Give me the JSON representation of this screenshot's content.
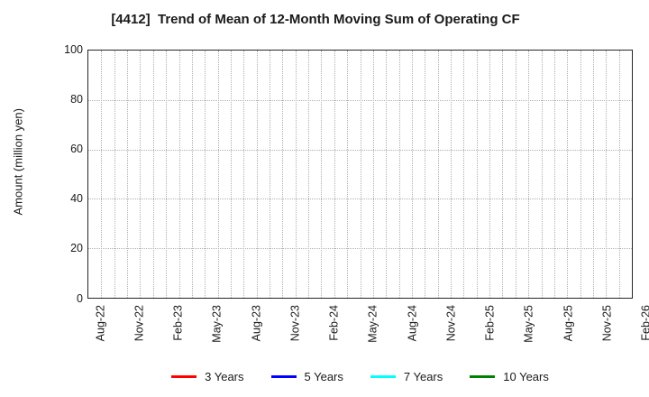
{
  "chart_data": {
    "type": "line",
    "title": "[4412]  Trend of Mean of 12-Month Moving Sum of Operating CF",
    "xlabel": "",
    "ylabel": "Amount (million yen)",
    "ylim": [
      0,
      100
    ],
    "yticks": [
      0,
      20,
      40,
      60,
      80,
      100
    ],
    "x_tick_labels": [
      "Aug-22",
      "Nov-22",
      "Feb-23",
      "May-23",
      "Aug-23",
      "Nov-23",
      "Feb-24",
      "May-24",
      "Aug-24",
      "Nov-24",
      "Feb-25",
      "May-25",
      "Aug-25",
      "Nov-25",
      "Feb-26"
    ],
    "x_total_intervals": 42,
    "x_label_every_n_intervals": 3,
    "grid": "dotted",
    "grid_minor_vertical": "monthly",
    "legend_position": "bottom",
    "series": [
      {
        "name": "3 Years",
        "color": "#ff0000",
        "values": []
      },
      {
        "name": "5 Years",
        "color": "#0000ff",
        "values": []
      },
      {
        "name": "7 Years",
        "color": "#00ffff",
        "values": []
      },
      {
        "name": "10 Years",
        "color": "#008000",
        "values": []
      }
    ]
  }
}
